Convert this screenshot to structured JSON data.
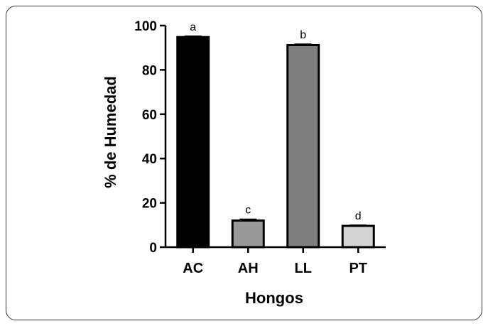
{
  "chart_data": {
    "type": "bar",
    "categories": [
      "AC",
      "AH",
      "LL",
      "PT"
    ],
    "values": [
      94.8,
      12.0,
      91.2,
      9.6
    ],
    "errors": [
      0.4,
      0.6,
      0.4,
      0.3
    ],
    "significance_labels": [
      "a",
      "c",
      "b",
      "d"
    ],
    "bar_colors": [
      "#000000",
      "#999999",
      "#7f7f7f",
      "#d4d4d4"
    ],
    "xlabel": "Hongos",
    "ylabel": "% de Humedad",
    "ylim": [
      0,
      100
    ],
    "yticks": [
      "0",
      "20",
      "40",
      "60",
      "80",
      "100"
    ],
    "grid": false,
    "legend": "none"
  }
}
